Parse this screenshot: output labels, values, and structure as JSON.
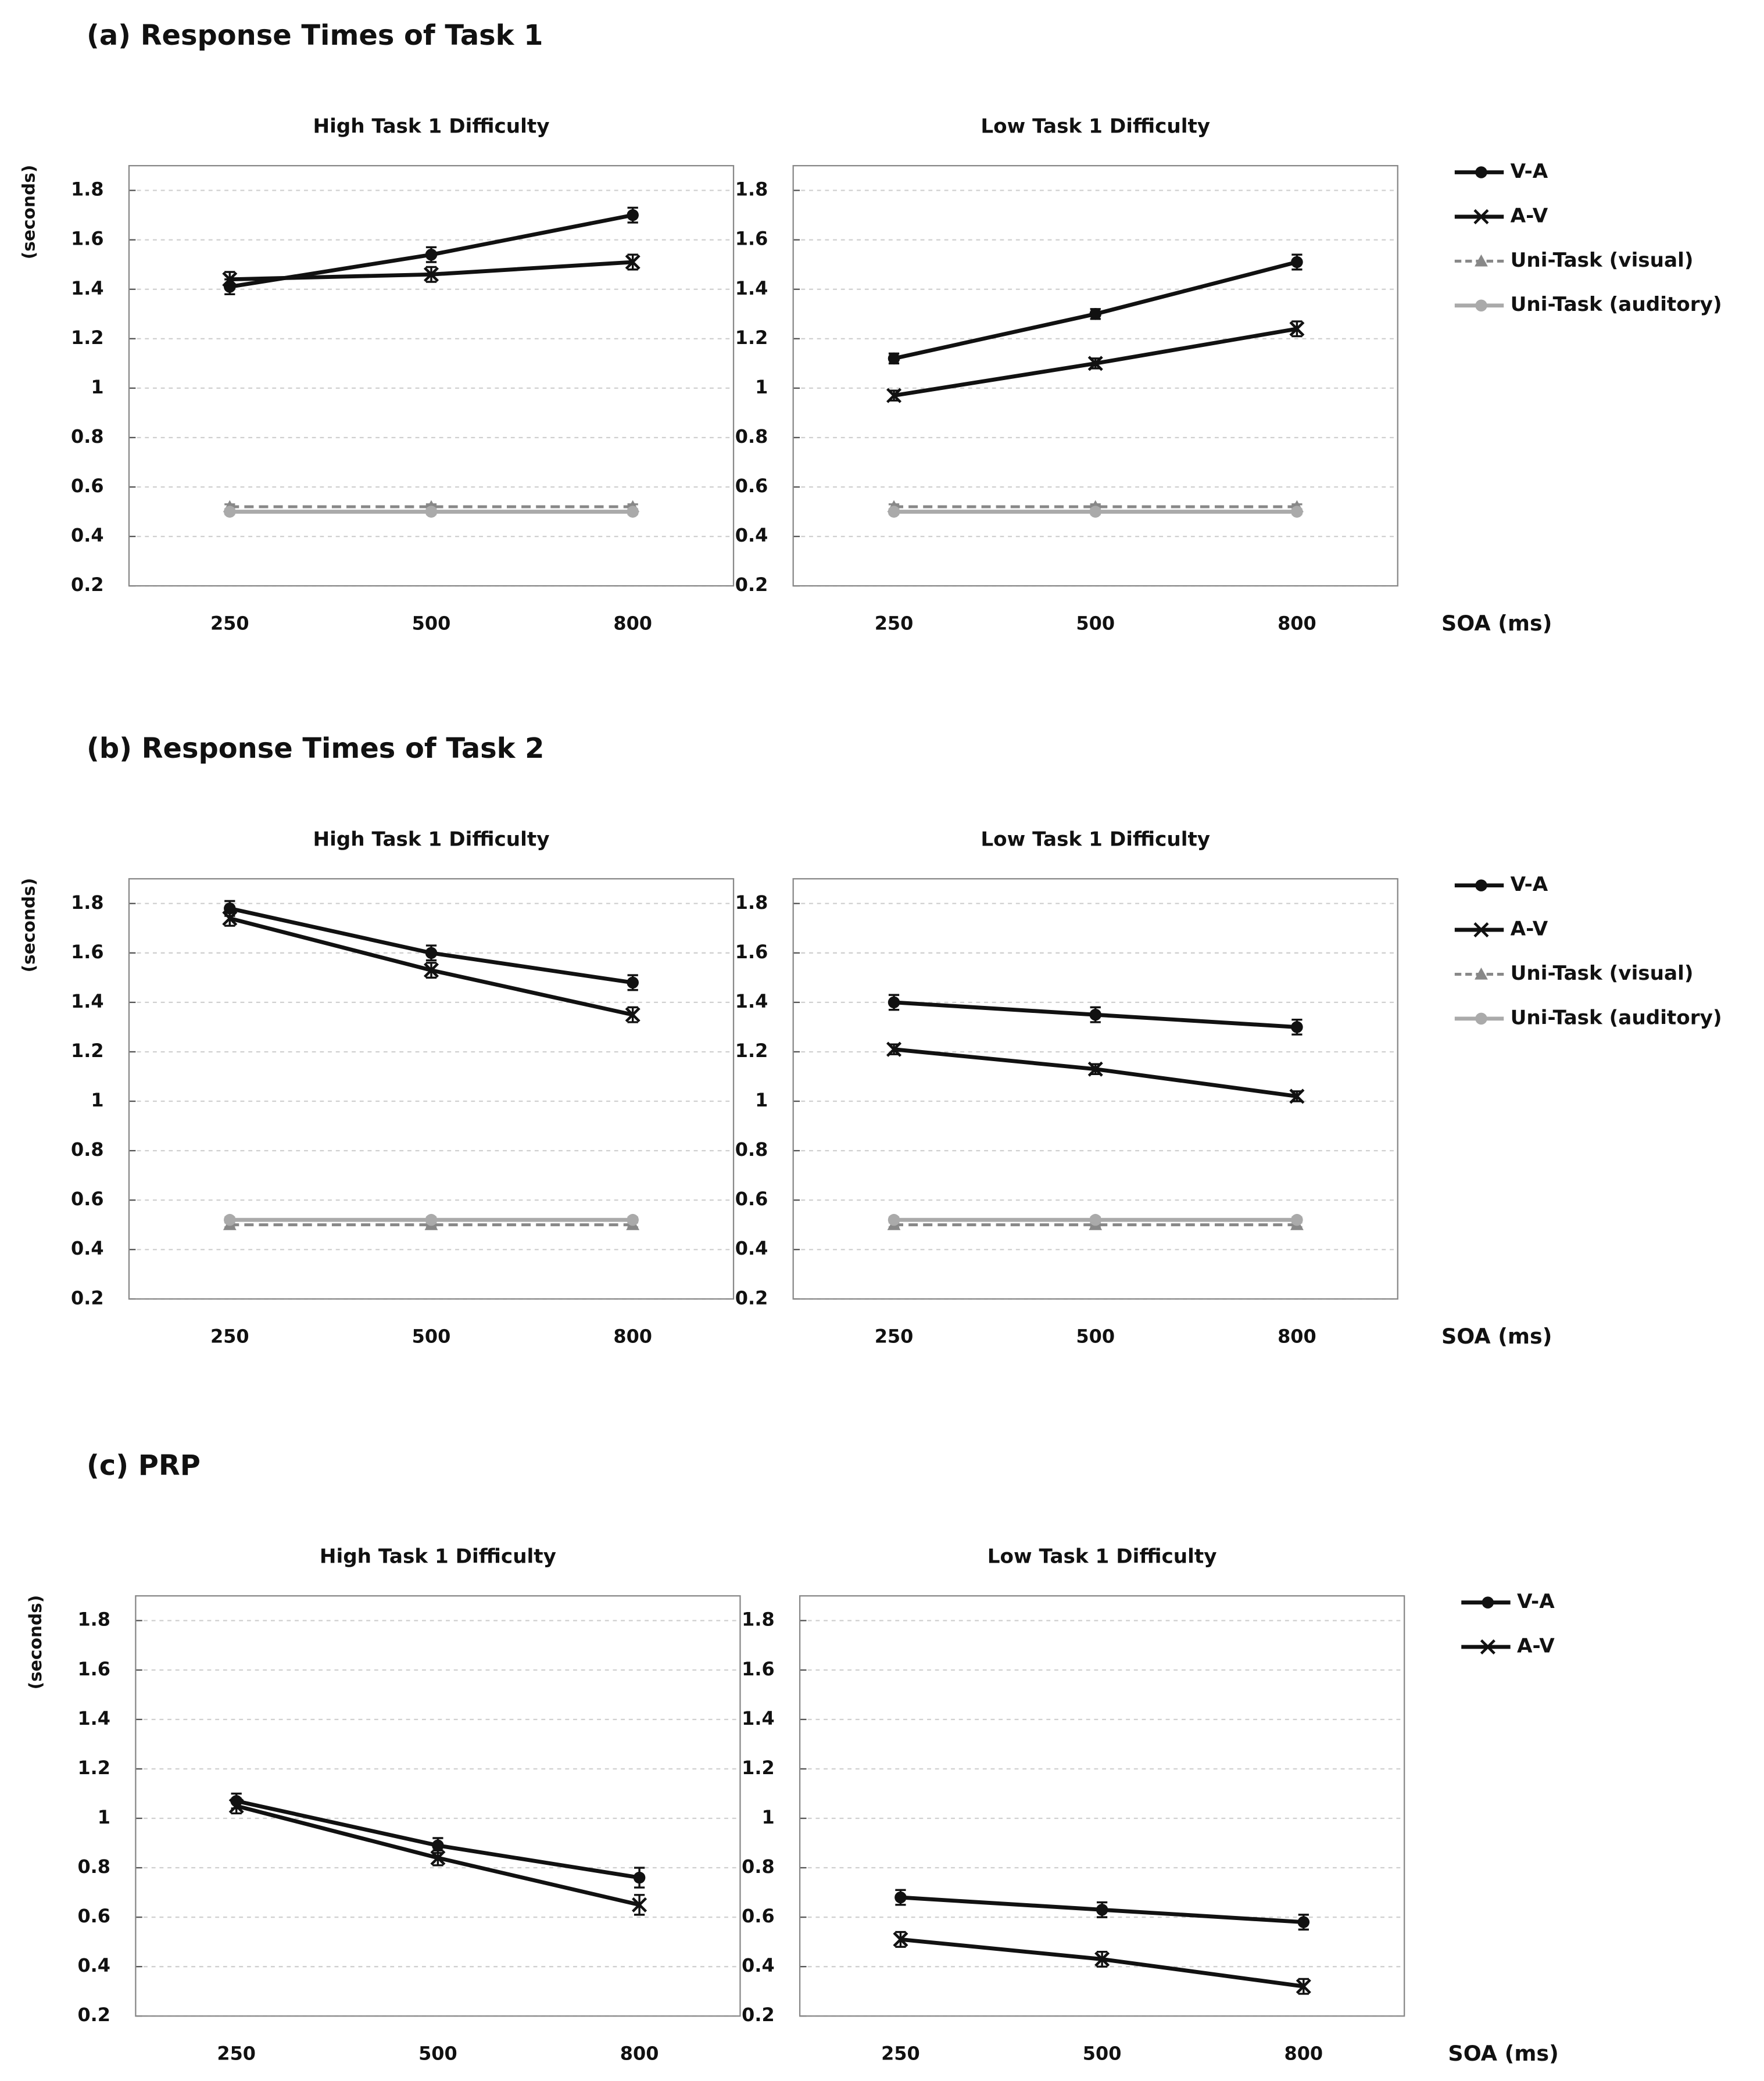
{
  "chart_data": [
    {
      "type": "line",
      "heading": "(a) Response Times of Task 1",
      "title": "High Task 1 Difficulty",
      "ylabel": "(seconds)",
      "categories": [
        "250",
        "500",
        "800"
      ],
      "ylim": [
        0.2,
        1.9
      ],
      "yticks": [
        0.2,
        0.4,
        0.6,
        0.8,
        1,
        1.2,
        1.4,
        1.6,
        1.8
      ],
      "grid": true,
      "series": [
        {
          "name": "V-A",
          "color": "#111111",
          "marker": "circle",
          "values": [
            1.41,
            1.54,
            1.7
          ],
          "errors": [
            0.03,
            0.03,
            0.03
          ]
        },
        {
          "name": "A-V",
          "color": "#111111",
          "marker": "x",
          "values": [
            1.44,
            1.46,
            1.51
          ],
          "errors": [
            0.03,
            0.03,
            0.03
          ]
        },
        {
          "name": "Uni-Task (visual)",
          "color": "#888888",
          "marker": "triangle",
          "dashed": true,
          "values": [
            0.52,
            0.52,
            0.52
          ],
          "errors": [
            0.01,
            0.01,
            0.01
          ]
        },
        {
          "name": "Uni-Task (auditory)",
          "color": "#aaaaaa",
          "marker": "circle",
          "values": [
            0.5,
            0.5,
            0.5
          ],
          "errors": [
            0.01,
            0.01,
            0.01
          ]
        }
      ]
    },
    {
      "type": "line",
      "title": "Low Task 1 Difficulty",
      "xlabel": "SOA (ms)",
      "categories": [
        "250",
        "500",
        "800"
      ],
      "ylim": [
        0.2,
        1.9
      ],
      "yticks": [
        0.2,
        0.4,
        0.6,
        0.8,
        1,
        1.2,
        1.4,
        1.6,
        1.8
      ],
      "grid": true,
      "series": [
        {
          "name": "V-A",
          "color": "#111111",
          "marker": "circle",
          "values": [
            1.12,
            1.3,
            1.51
          ],
          "errors": [
            0.02,
            0.02,
            0.03
          ]
        },
        {
          "name": "A-V",
          "color": "#111111",
          "marker": "x",
          "values": [
            0.97,
            1.1,
            1.24
          ],
          "errors": [
            0.02,
            0.02,
            0.03
          ]
        },
        {
          "name": "Uni-Task (visual)",
          "color": "#888888",
          "marker": "triangle",
          "dashed": true,
          "values": [
            0.52,
            0.52,
            0.52
          ],
          "errors": [
            0.01,
            0.01,
            0.01
          ]
        },
        {
          "name": "Uni-Task (auditory)",
          "color": "#aaaaaa",
          "marker": "circle",
          "values": [
            0.5,
            0.5,
            0.5
          ],
          "errors": [
            0.01,
            0.01,
            0.01
          ]
        }
      ]
    },
    {
      "type": "line",
      "heading": "(b) Response Times of Task 2",
      "title": "High Task 1 Difficulty",
      "ylabel": "(seconds)",
      "categories": [
        "250",
        "500",
        "800"
      ],
      "ylim": [
        0.2,
        1.9
      ],
      "yticks": [
        0.2,
        0.4,
        0.6,
        0.8,
        1,
        1.2,
        1.4,
        1.6,
        1.8
      ],
      "grid": true,
      "series": [
        {
          "name": "V-A",
          "color": "#111111",
          "marker": "circle",
          "values": [
            1.78,
            1.6,
            1.48
          ],
          "errors": [
            0.03,
            0.03,
            0.03
          ]
        },
        {
          "name": "A-V",
          "color": "#111111",
          "marker": "x",
          "values": [
            1.74,
            1.53,
            1.35
          ],
          "errors": [
            0.03,
            0.03,
            0.03
          ]
        },
        {
          "name": "Uni-Task (visual)",
          "color": "#888888",
          "marker": "triangle",
          "dashed": true,
          "values": [
            0.5,
            0.5,
            0.5
          ],
          "errors": [
            0.01,
            0.01,
            0.01
          ]
        },
        {
          "name": "Uni-Task (auditory)",
          "color": "#aaaaaa",
          "marker": "circle",
          "values": [
            0.52,
            0.52,
            0.52
          ],
          "errors": [
            0.01,
            0.01,
            0.01
          ]
        }
      ]
    },
    {
      "type": "line",
      "title": "Low Task 1 Difficulty",
      "xlabel": "SOA (ms)",
      "categories": [
        "250",
        "500",
        "800"
      ],
      "ylim": [
        0.2,
        1.9
      ],
      "yticks": [
        0.2,
        0.4,
        0.6,
        0.8,
        1,
        1.2,
        1.4,
        1.6,
        1.8
      ],
      "grid": true,
      "series": [
        {
          "name": "V-A",
          "color": "#111111",
          "marker": "circle",
          "values": [
            1.4,
            1.35,
            1.3
          ],
          "errors": [
            0.03,
            0.03,
            0.03
          ]
        },
        {
          "name": "A-V",
          "color": "#111111",
          "marker": "x",
          "values": [
            1.21,
            1.13,
            1.02
          ],
          "errors": [
            0.02,
            0.02,
            0.02
          ]
        },
        {
          "name": "Uni-Task (visual)",
          "color": "#888888",
          "marker": "triangle",
          "dashed": true,
          "values": [
            0.5,
            0.5,
            0.5
          ],
          "errors": [
            0.01,
            0.01,
            0.01
          ]
        },
        {
          "name": "Uni-Task (auditory)",
          "color": "#aaaaaa",
          "marker": "circle",
          "values": [
            0.52,
            0.52,
            0.52
          ],
          "errors": [
            0.01,
            0.01,
            0.01
          ]
        }
      ]
    },
    {
      "type": "line",
      "heading": "(c) PRP",
      "title": "High Task 1 Difficulty",
      "ylabel": "(seconds)",
      "categories": [
        "250",
        "500",
        "800"
      ],
      "ylim": [
        0.2,
        1.9
      ],
      "yticks": [
        0.2,
        0.4,
        0.6,
        0.8,
        1,
        1.2,
        1.4,
        1.6,
        1.8
      ],
      "grid": true,
      "series": [
        {
          "name": "V-A",
          "color": "#111111",
          "marker": "circle",
          "values": [
            1.07,
            0.89,
            0.76
          ],
          "errors": [
            0.03,
            0.03,
            0.04
          ]
        },
        {
          "name": "A-V",
          "color": "#111111",
          "marker": "x",
          "values": [
            1.05,
            0.84,
            0.65
          ],
          "errors": [
            0.03,
            0.03,
            0.04
          ]
        }
      ]
    },
    {
      "type": "line",
      "title": "Low Task 1 Difficulty",
      "xlabel": "SOA (ms)",
      "categories": [
        "250",
        "500",
        "800"
      ],
      "ylim": [
        0.2,
        1.9
      ],
      "yticks": [
        0.2,
        0.4,
        0.6,
        0.8,
        1,
        1.2,
        1.4,
        1.6,
        1.8
      ],
      "grid": true,
      "series": [
        {
          "name": "V-A",
          "color": "#111111",
          "marker": "circle",
          "values": [
            0.68,
            0.63,
            0.58
          ],
          "errors": [
            0.03,
            0.03,
            0.03
          ]
        },
        {
          "name": "A-V",
          "color": "#111111",
          "marker": "x",
          "values": [
            0.51,
            0.43,
            0.32
          ],
          "errors": [
            0.03,
            0.03,
            0.03
          ]
        }
      ]
    }
  ]
}
